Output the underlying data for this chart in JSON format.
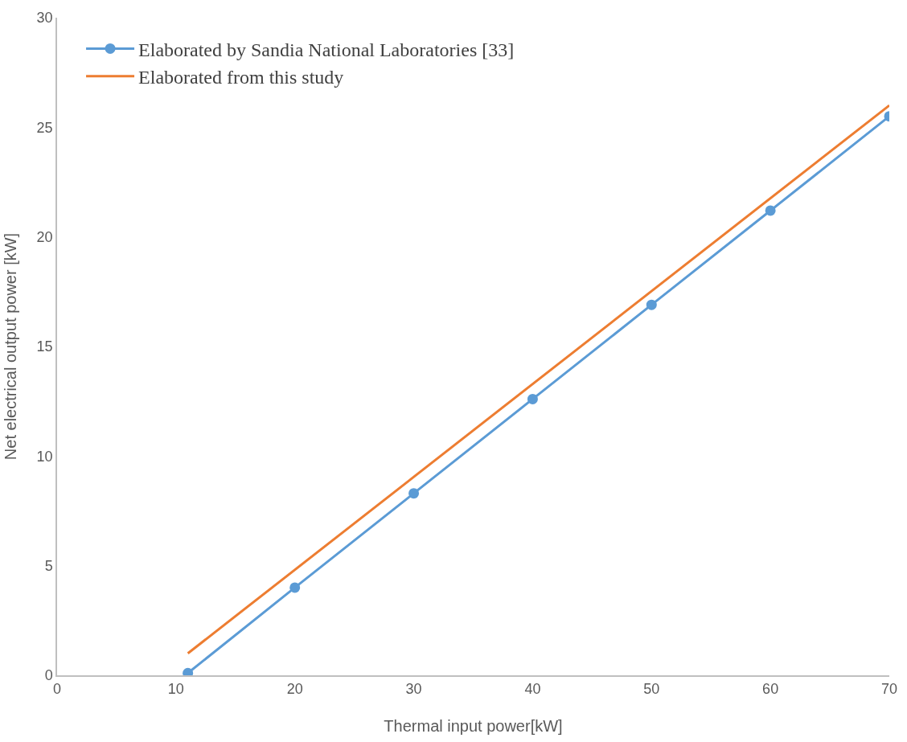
{
  "chart_data": {
    "type": "line",
    "xlabel": "Thermal input power[kW]",
    "ylabel": "Net electrical output power [kW]",
    "series": [
      {
        "name": "Elaborated by Sandia National Laboratories [33]",
        "color": "#5b9bd5",
        "marker": "circle",
        "x": [
          11,
          20,
          30,
          40,
          50,
          60,
          70
        ],
        "values": [
          0.1,
          4.0,
          8.3,
          12.6,
          16.9,
          21.2,
          25.5
        ]
      },
      {
        "name": "Elaborated from this study",
        "color": "#ed7d31",
        "marker": "none",
        "x": [
          11,
          70
        ],
        "values": [
          1.0,
          26.0
        ]
      }
    ],
    "xlim": [
      0,
      70
    ],
    "xticks": [
      0,
      10,
      20,
      30,
      40,
      50,
      60,
      70
    ],
    "ylim": [
      0,
      30
    ],
    "yticks": [
      0,
      5,
      10,
      15,
      20,
      25,
      30
    ],
    "legend": "top left",
    "line_style": "solid"
  }
}
